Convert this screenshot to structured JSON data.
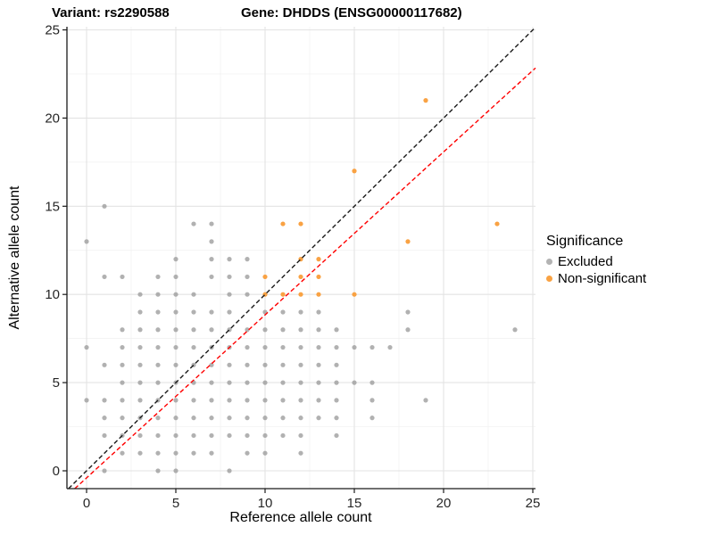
{
  "title": {
    "variant": "Variant: rs2290588",
    "gene": "Gene: DHDDS (ENSG00000117682)"
  },
  "axes": {
    "x_label": "Reference allele count",
    "y_label": "Alternative allele count",
    "x_ticks": [
      0,
      5,
      10,
      15,
      20,
      25
    ],
    "y_ticks": [
      0,
      5,
      10,
      15,
      20,
      25
    ],
    "minor_step": 2.5,
    "x_range": [
      -1.1,
      25.15
    ],
    "y_range": [
      -1.0,
      25.2
    ]
  },
  "legend": {
    "title": "Significance",
    "items": [
      {
        "label": "Excluded",
        "color": "#b3b3b3"
      },
      {
        "label": "Non-significant",
        "color": "#f9a243"
      }
    ]
  },
  "colors": {
    "excluded_point": "#9e9e9e",
    "nonsignificant_point": "#f9a243",
    "identity_line": "#1a1a1a",
    "expected_line": "#ff0000",
    "grid_major": "#e3e3e3",
    "grid_minor": "#f0f0f0",
    "axis_line": "#1a1a1a",
    "tick_text": "#262626"
  },
  "chart_data": {
    "type": "scatter",
    "title": "Variant: rs2290588 | Gene: DHDDS (ENSG00000117682)",
    "xlabel": "Reference allele count",
    "ylabel": "Alternative allele count",
    "xlim": [
      -1.1,
      25.15
    ],
    "ylim": [
      -1.0,
      25.2
    ],
    "grid": true,
    "legend_position": "right",
    "series": [
      {
        "name": "Excluded",
        "color": "#9e9e9e",
        "points": [
          [
            1,
            0
          ],
          [
            4,
            0
          ],
          [
            5,
            0
          ],
          [
            8,
            0
          ],
          [
            2,
            1
          ],
          [
            3,
            1
          ],
          [
            4,
            1
          ],
          [
            5,
            1
          ],
          [
            6,
            1
          ],
          [
            7,
            1
          ],
          [
            9,
            1
          ],
          [
            10,
            1
          ],
          [
            12,
            1
          ],
          [
            1,
            2
          ],
          [
            2,
            2
          ],
          [
            3,
            2
          ],
          [
            4,
            2
          ],
          [
            5,
            2
          ],
          [
            6,
            2
          ],
          [
            7,
            2
          ],
          [
            8,
            2
          ],
          [
            9,
            2
          ],
          [
            10,
            2
          ],
          [
            11,
            2
          ],
          [
            12,
            2
          ],
          [
            14,
            2
          ],
          [
            1,
            3
          ],
          [
            2,
            3
          ],
          [
            3,
            3
          ],
          [
            4,
            3
          ],
          [
            5,
            3
          ],
          [
            6,
            3
          ],
          [
            7,
            3
          ],
          [
            8,
            3
          ],
          [
            9,
            3
          ],
          [
            10,
            3
          ],
          [
            11,
            3
          ],
          [
            12,
            3
          ],
          [
            13,
            3
          ],
          [
            14,
            3
          ],
          [
            16,
            3
          ],
          [
            0,
            4
          ],
          [
            1,
            4
          ],
          [
            2,
            4
          ],
          [
            3,
            4
          ],
          [
            4,
            4
          ],
          [
            5,
            4
          ],
          [
            6,
            4
          ],
          [
            7,
            4
          ],
          [
            8,
            4
          ],
          [
            9,
            4
          ],
          [
            10,
            4
          ],
          [
            11,
            4
          ],
          [
            12,
            4
          ],
          [
            13,
            4
          ],
          [
            14,
            4
          ],
          [
            16,
            4
          ],
          [
            19,
            4
          ],
          [
            2,
            5
          ],
          [
            3,
            5
          ],
          [
            4,
            5
          ],
          [
            5,
            5
          ],
          [
            6,
            5
          ],
          [
            7,
            5
          ],
          [
            8,
            5
          ],
          [
            9,
            5
          ],
          [
            10,
            5
          ],
          [
            11,
            5
          ],
          [
            12,
            5
          ],
          [
            13,
            5
          ],
          [
            14,
            5
          ],
          [
            15,
            5
          ],
          [
            16,
            5
          ],
          [
            1,
            6
          ],
          [
            2,
            6
          ],
          [
            3,
            6
          ],
          [
            4,
            6
          ],
          [
            5,
            6
          ],
          [
            6,
            6
          ],
          [
            7,
            6
          ],
          [
            8,
            6
          ],
          [
            9,
            6
          ],
          [
            10,
            6
          ],
          [
            11,
            6
          ],
          [
            12,
            6
          ],
          [
            13,
            6
          ],
          [
            14,
            6
          ],
          [
            0,
            7
          ],
          [
            2,
            7
          ],
          [
            3,
            7
          ],
          [
            4,
            7
          ],
          [
            5,
            7
          ],
          [
            6,
            7
          ],
          [
            7,
            7
          ],
          [
            8,
            7
          ],
          [
            9,
            7
          ],
          [
            10,
            7
          ],
          [
            11,
            7
          ],
          [
            12,
            7
          ],
          [
            13,
            7
          ],
          [
            14,
            7
          ],
          [
            15,
            7
          ],
          [
            16,
            7
          ],
          [
            17,
            7
          ],
          [
            2,
            8
          ],
          [
            3,
            8
          ],
          [
            4,
            8
          ],
          [
            5,
            8
          ],
          [
            6,
            8
          ],
          [
            7,
            8
          ],
          [
            8,
            8
          ],
          [
            9,
            8
          ],
          [
            10,
            8
          ],
          [
            11,
            8
          ],
          [
            12,
            8
          ],
          [
            13,
            8
          ],
          [
            14,
            8
          ],
          [
            18,
            8
          ],
          [
            24,
            8
          ],
          [
            3,
            9
          ],
          [
            4,
            9
          ],
          [
            5,
            9
          ],
          [
            6,
            9
          ],
          [
            7,
            9
          ],
          [
            8,
            9
          ],
          [
            10,
            9
          ],
          [
            11,
            9
          ],
          [
            12,
            9
          ],
          [
            13,
            9
          ],
          [
            18,
            9
          ],
          [
            3,
            10
          ],
          [
            4,
            10
          ],
          [
            5,
            10
          ],
          [
            6,
            10
          ],
          [
            8,
            10
          ],
          [
            9,
            10
          ],
          [
            1,
            11
          ],
          [
            2,
            11
          ],
          [
            4,
            11
          ],
          [
            5,
            11
          ],
          [
            7,
            11
          ],
          [
            8,
            11
          ],
          [
            9,
            11
          ],
          [
            5,
            12
          ],
          [
            7,
            12
          ],
          [
            8,
            12
          ],
          [
            9,
            12
          ],
          [
            0,
            13
          ],
          [
            7,
            13
          ],
          [
            6,
            14
          ],
          [
            7,
            14
          ],
          [
            1,
            15
          ]
        ]
      },
      {
        "name": "Non-significant",
        "color": "#f9a243",
        "points": [
          [
            10,
            10
          ],
          [
            11,
            10
          ],
          [
            12,
            10
          ],
          [
            13,
            10
          ],
          [
            15,
            10
          ],
          [
            10,
            11
          ],
          [
            12,
            11
          ],
          [
            13,
            11
          ],
          [
            12,
            12
          ],
          [
            13,
            12
          ],
          [
            18,
            13
          ],
          [
            11,
            14
          ],
          [
            12,
            14
          ],
          [
            23,
            14
          ],
          [
            15,
            17
          ],
          [
            19,
            21
          ]
        ]
      }
    ],
    "lines": [
      {
        "name": "identity",
        "slope": 1.0,
        "intercept": 0.0,
        "color": "#1a1a1a",
        "style": "dashed"
      },
      {
        "name": "expected-ratio",
        "slope": 0.924,
        "intercept": -0.4,
        "color": "#ff0000",
        "style": "dashed"
      }
    ]
  }
}
